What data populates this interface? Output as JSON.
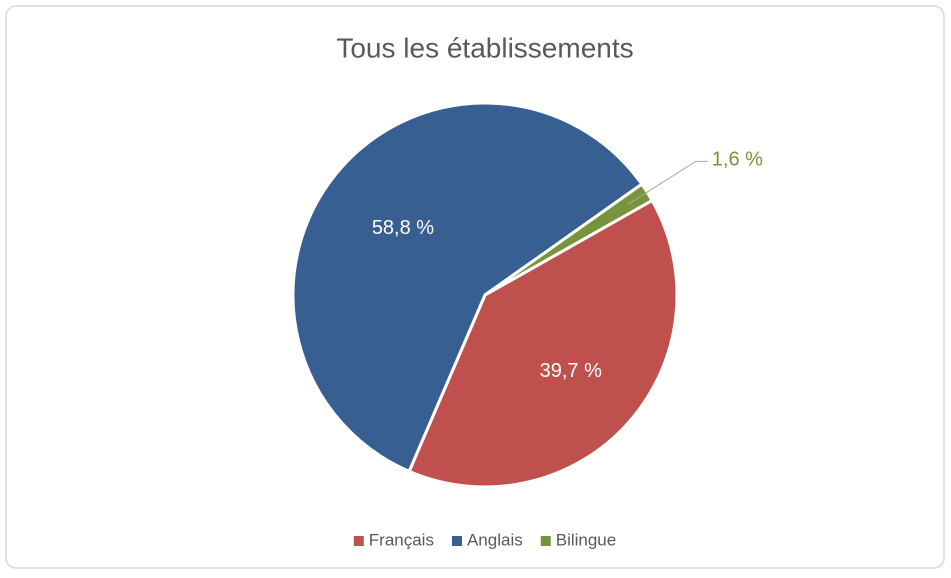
{
  "chart_data": {
    "type": "pie",
    "title": "Tous les établissements",
    "categories": [
      "Français",
      "Anglais",
      "Bilingue"
    ],
    "values": [
      39.7,
      58.8,
      1.6
    ],
    "value_labels": [
      "39,7 %",
      "58,8 %",
      "1,6 %"
    ],
    "colors": [
      "#c0504d",
      "#375f92",
      "#77933c"
    ],
    "legend": "bottom"
  }
}
